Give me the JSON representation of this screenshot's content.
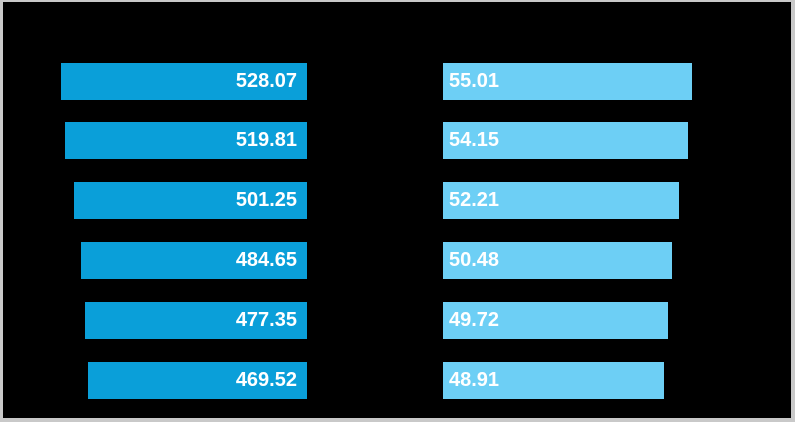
{
  "window": {
    "background_color": "#000000",
    "frame_color": "#c9c9c9"
  },
  "chart_data": {
    "type": "bar",
    "orientation": "horizontal",
    "title": "",
    "xlabel": "",
    "ylabel": "",
    "grid": false,
    "legend": "none",
    "background_color": "#000000",
    "value_label_color": "#ffffff",
    "rows": 6,
    "series": [
      {
        "panel": "left",
        "bar_color": "#0a9fd9",
        "anchor": "right",
        "value_axis_min": 0,
        "values": [
          528.07,
          519.81,
          501.25,
          484.65,
          477.35,
          469.52
        ],
        "value_labels": [
          "528.07",
          "519.81",
          "501.25",
          "484.65",
          "477.35",
          "469.52"
        ],
        "label_align": "right"
      },
      {
        "panel": "right",
        "bar_color": "#6dcff5",
        "anchor": "left",
        "value_axis_min": 0,
        "values": [
          55.01,
          54.15,
          52.21,
          50.48,
          49.72,
          48.91
        ],
        "value_labels": [
          "55.01",
          "54.15",
          "52.21",
          "50.48",
          "49.72",
          "48.91"
        ],
        "label_align": "left"
      }
    ]
  }
}
